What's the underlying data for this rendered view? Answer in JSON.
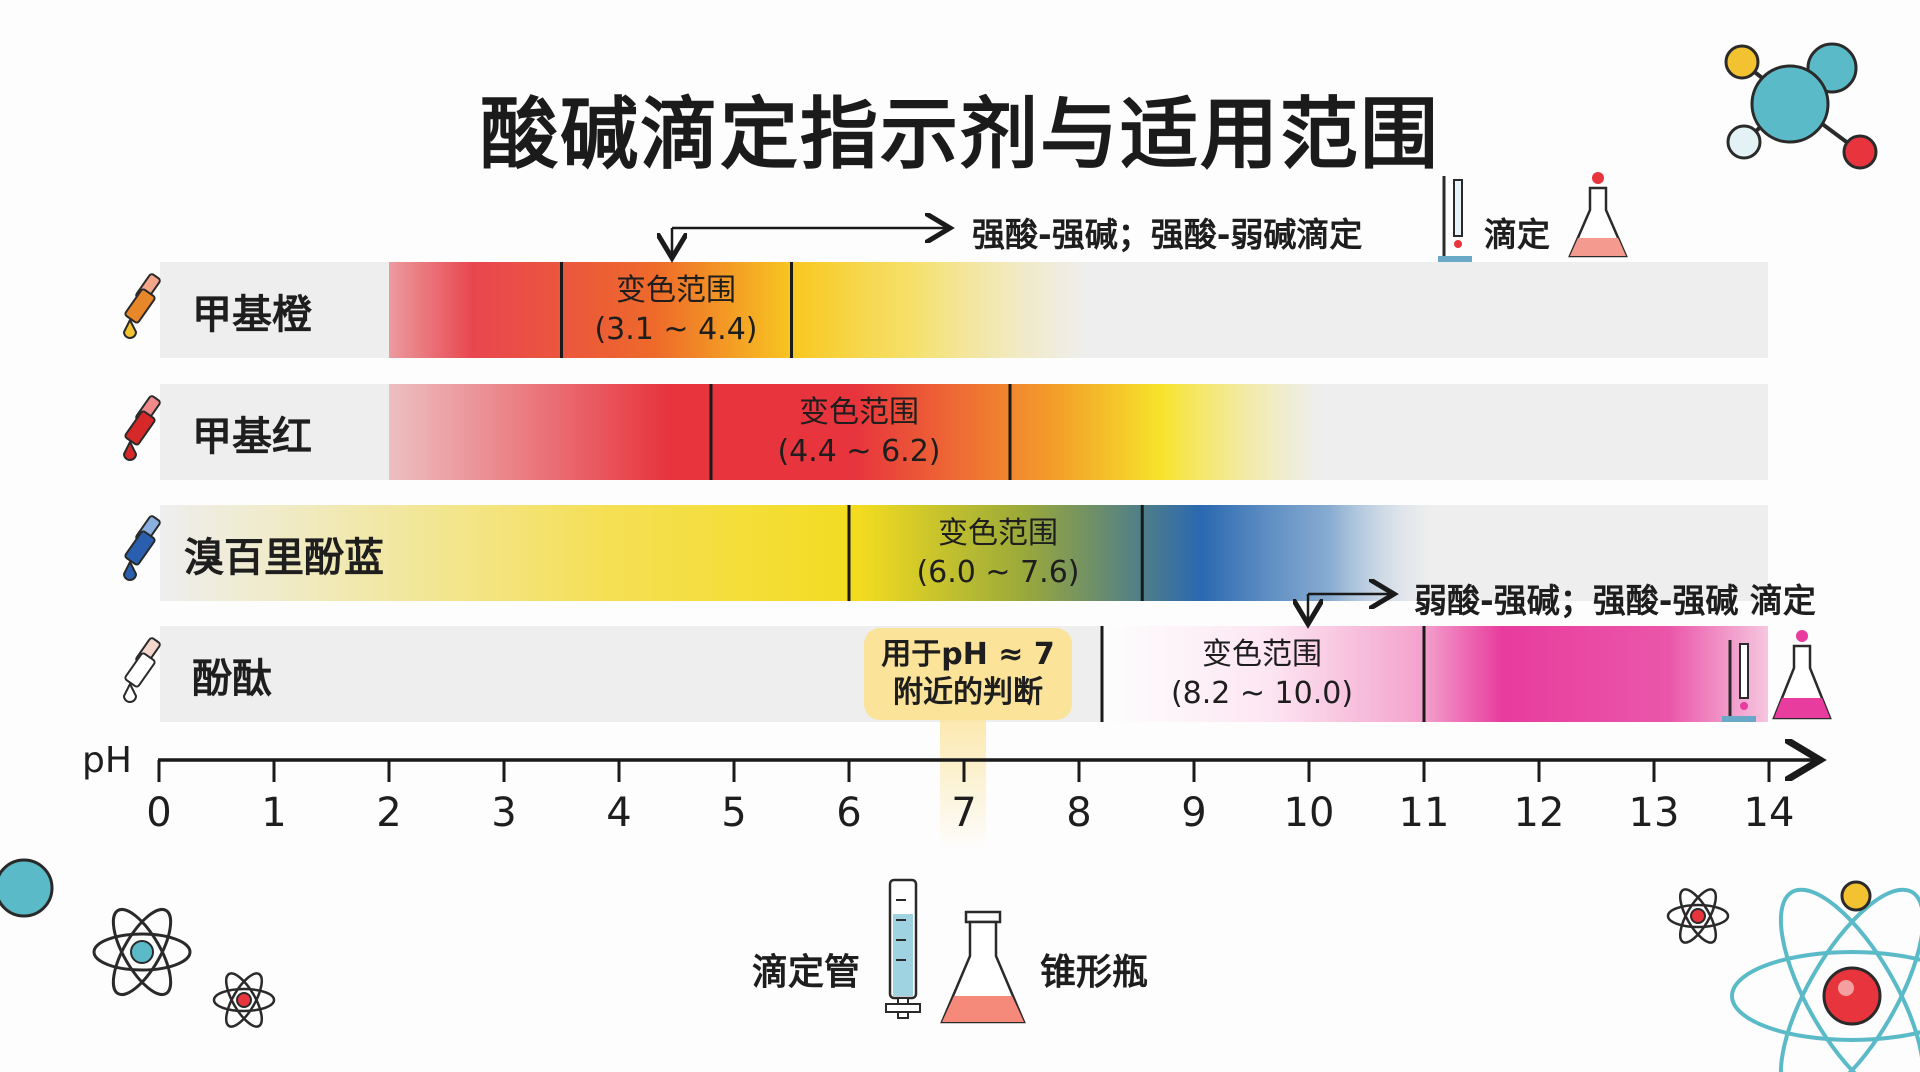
{
  "title": "酸碱滴定指示剂与适用范围",
  "range_caption": "变色范围",
  "indicators": [
    {
      "name": "甲基橙",
      "range_text": "(3.1 ~ 4.4)",
      "low": 3.1,
      "high": 4.4,
      "color_acid": "#e8343d",
      "color_base": "#f6d31c",
      "dropper_color": "#e8862a"
    },
    {
      "name": "甲基红",
      "range_text": "(4.4 ~ 6.2)",
      "low": 4.4,
      "high": 6.2,
      "color_acid": "#e8343d",
      "color_base": "#f6de1c",
      "dropper_color": "#d62828"
    },
    {
      "name": "溴百里酚蓝",
      "range_text": "(6.0 ~ 7.6)",
      "low": 6.0,
      "high": 7.6,
      "color_acid": "#f6de1c",
      "color_base": "#2a68b0",
      "dropper_color": "#2a5fb0"
    },
    {
      "name": "酚酞",
      "range_text": "(8.2 ~ 10.0)",
      "low": 8.2,
      "high": 10.0,
      "color_acid": "#ffffff",
      "color_base": "#e83c9e",
      "dropper_color": "#ffffff"
    }
  ],
  "notes": {
    "top": "强酸-强碱；强酸-弱碱滴定",
    "top_right": "滴定",
    "mid": "弱酸-强碱；强酸-强碱 滴定",
    "callout_line1": "用于pH ≈ 7",
    "callout_line2": "附近的判断"
  },
  "axis": {
    "label": "pH",
    "ticks": [
      "0",
      "1",
      "2",
      "3",
      "4",
      "5",
      "6",
      "7",
      "8",
      "9",
      "10",
      "11",
      "12",
      "13",
      "14"
    ]
  },
  "apparatus": {
    "burette": "滴定管",
    "flask": "锥形瓶"
  },
  "colors": {
    "track": "#eeeeee",
    "axis": "#1a1a1a",
    "callout": "#fbe39a",
    "atom_teal": "#5bbac8",
    "atom_red": "#e8343d",
    "atom_yellow": "#f2c230"
  }
}
